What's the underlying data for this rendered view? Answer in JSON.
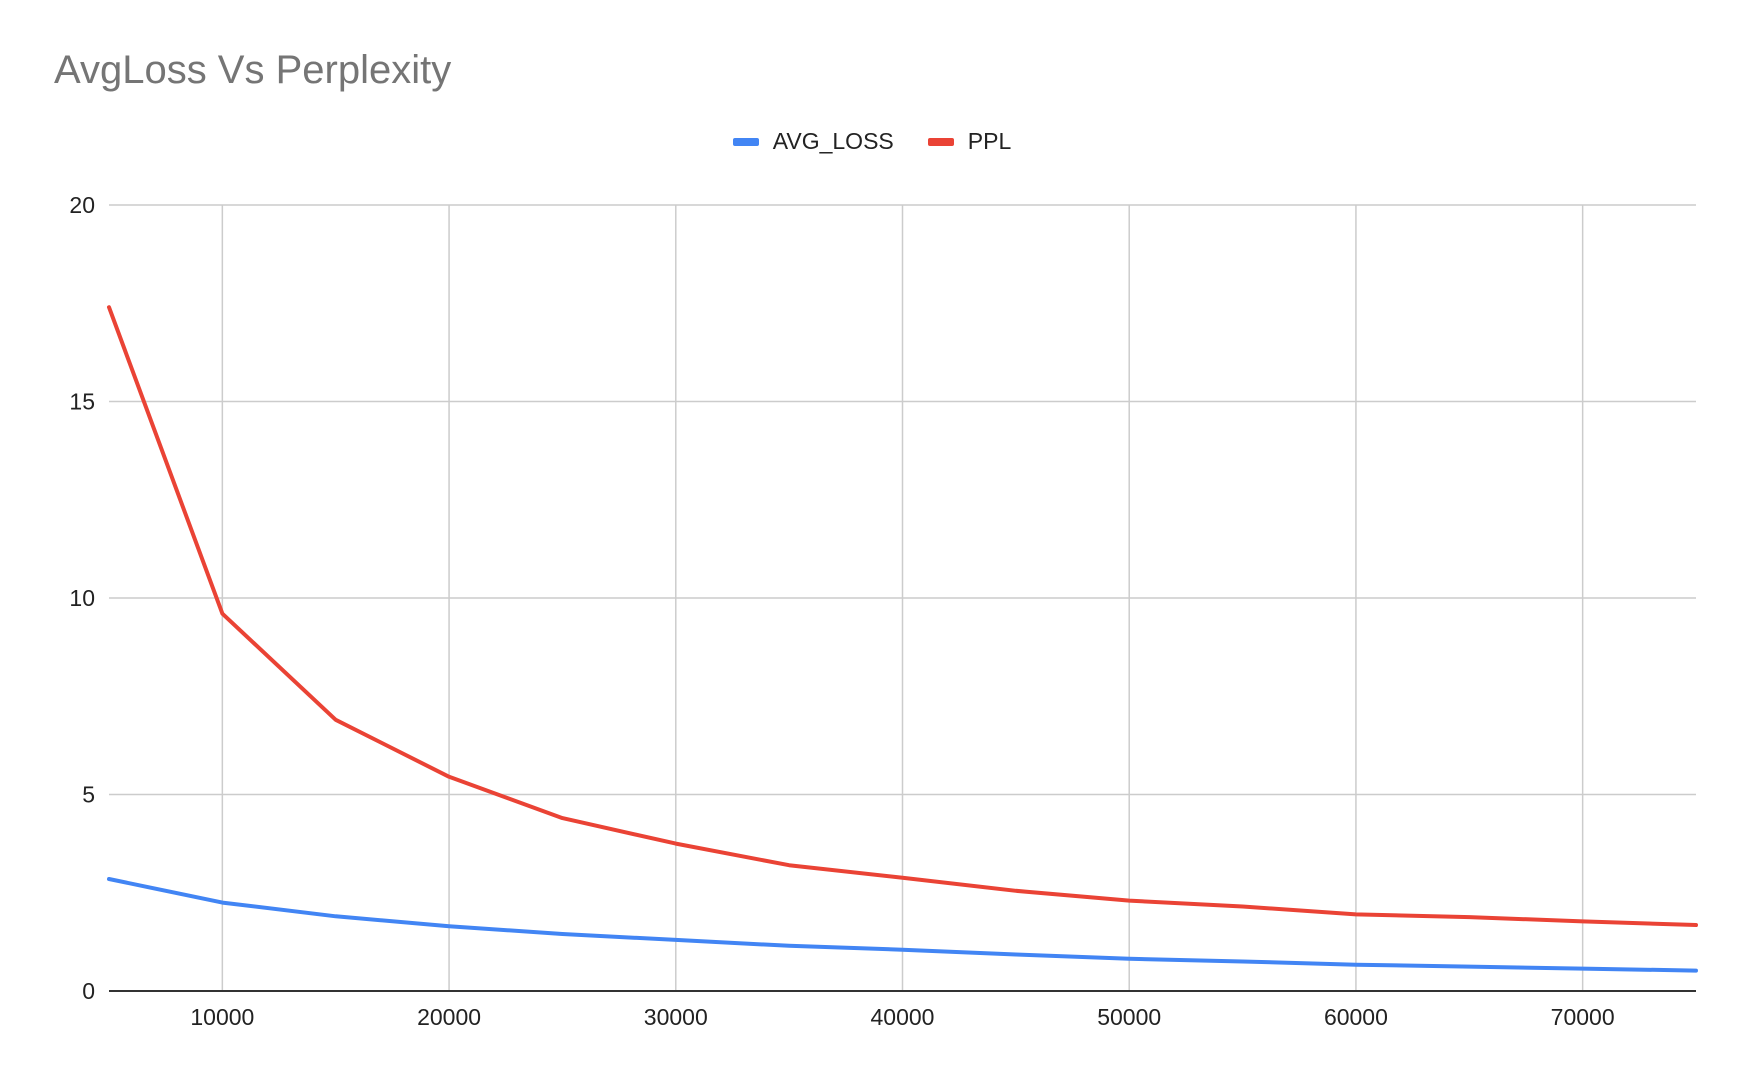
{
  "chart_data": {
    "type": "line",
    "title": "AvgLoss Vs Perplexity",
    "xlabel": "",
    "ylabel": "",
    "x": [
      5000,
      10000,
      15000,
      20000,
      25000,
      30000,
      35000,
      40000,
      45000,
      50000,
      55000,
      60000,
      65000,
      70000,
      75000
    ],
    "series": [
      {
        "name": "AVG_LOSS",
        "color": "#4285F4",
        "values": [
          2.85,
          2.25,
          1.9,
          1.65,
          1.45,
          1.3,
          1.15,
          1.05,
          0.93,
          0.82,
          0.75,
          0.67,
          0.62,
          0.57,
          0.52
        ]
      },
      {
        "name": "PPL",
        "color": "#EA4335",
        "values": [
          17.4,
          9.6,
          6.9,
          5.45,
          4.4,
          3.75,
          3.2,
          2.88,
          2.55,
          2.3,
          2.15,
          1.95,
          1.88,
          1.77,
          1.68
        ]
      }
    ],
    "xlim": [
      5000,
      75000
    ],
    "ylim": [
      0,
      20
    ],
    "x_ticks": [
      "10000",
      "20000",
      "30000",
      "40000",
      "50000",
      "60000",
      "70000"
    ],
    "y_ticks": [
      "0",
      "5",
      "10",
      "15",
      "20"
    ],
    "grid": true,
    "legend_position": "top-center"
  }
}
